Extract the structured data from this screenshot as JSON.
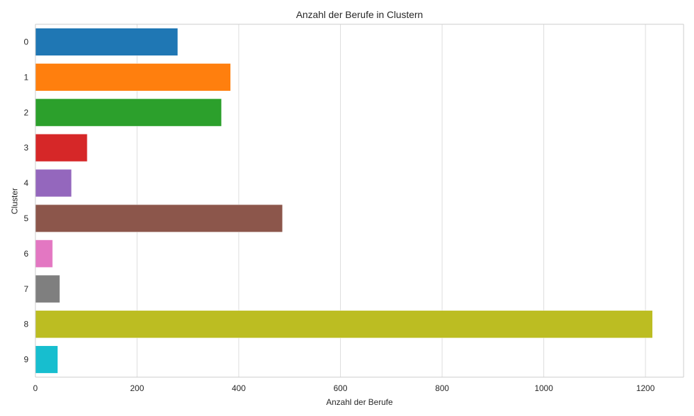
{
  "chart_data": {
    "type": "bar",
    "orientation": "horizontal",
    "title": "Anzahl der Berufe in Clustern",
    "xlabel": "Anzahl der Berufe",
    "ylabel": "Cluster",
    "categories": [
      "0",
      "1",
      "2",
      "3",
      "4",
      "5",
      "6",
      "7",
      "8",
      "9"
    ],
    "values": [
      280,
      384,
      366,
      102,
      71,
      486,
      34,
      48,
      1214,
      44
    ],
    "xlim": [
      0,
      1275
    ],
    "xticks": [
      0,
      200,
      400,
      600,
      800,
      1000,
      1200
    ],
    "grid": "vertical",
    "colors": [
      "#1f77b4",
      "#ff7f0e",
      "#2ca02c",
      "#d62728",
      "#9467bd",
      "#8c564b",
      "#e377c2",
      "#7f7f7f",
      "#bcbd22",
      "#17becf"
    ]
  }
}
